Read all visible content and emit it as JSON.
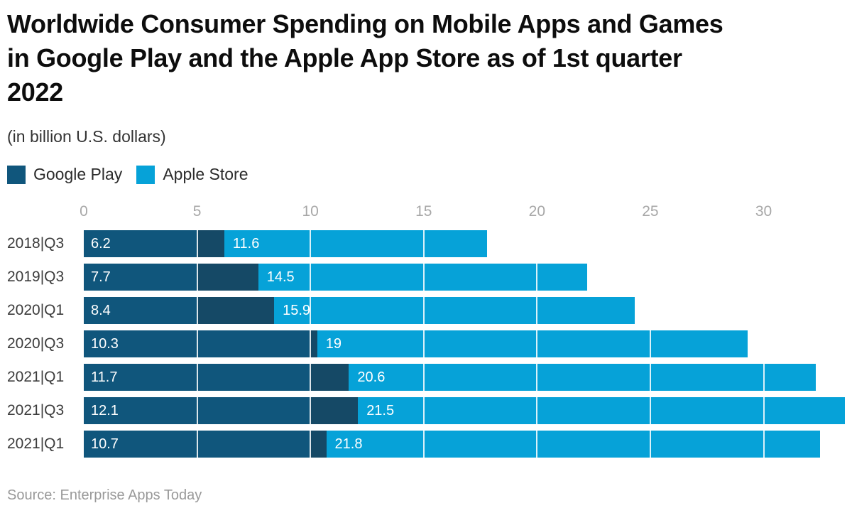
{
  "title_lines": [
    "Worldwide Consumer Spending on Mobile Apps and Games",
    "in Google Play and the Apple App Store as of 1st quarter",
    "2022"
  ],
  "subtitle": "(in billion U.S. dollars)",
  "legend": {
    "items": [
      {
        "label": "Google Play",
        "color": "#10567C"
      },
      {
        "label": "Apple Store",
        "color": "#06A2D8"
      }
    ]
  },
  "source": "Source: Enterprise Apps Today",
  "chart_data": {
    "type": "bar",
    "orientation": "horizontal",
    "stacked": true,
    "title": "Worldwide Consumer Spending on Mobile Apps and Games in Google Play and the Apple App Store as of 1st quarter 2022",
    "subtitle": "(in billion U.S. dollars)",
    "xlabel": "",
    "ylabel": "",
    "legend_position": "top-left",
    "grid": true,
    "gridline_color": "rgba(255,255,255,0.85)",
    "categories": [
      "2018|Q3",
      "2019|Q3",
      "2020|Q1",
      "2020|Q3",
      "2021|Q1",
      "2021|Q3",
      "2021|Q1"
    ],
    "series": [
      {
        "name": "Google Play",
        "color": "#10567C",
        "tail_color": "#154966",
        "values": [
          6.2,
          7.7,
          8.4,
          10.3,
          11.7,
          12.1,
          10.7
        ],
        "labels": [
          "6.2",
          "7.7",
          "8.4",
          "10.3",
          "11.7",
          "12.1",
          "10.7"
        ]
      },
      {
        "name": "Apple Store",
        "color": "#06A2D8",
        "values": [
          11.6,
          14.5,
          15.9,
          19,
          20.6,
          21.5,
          21.8
        ],
        "labels": [
          "11.6",
          "14.5",
          "15.9",
          "19",
          "20.6",
          "21.5",
          "21.8"
        ]
      }
    ],
    "axis": {
      "ticks": [
        0,
        5,
        10,
        15,
        20,
        25,
        30
      ],
      "tick_labels": [
        "0",
        "5",
        "10",
        "15",
        "20",
        "25",
        "30"
      ],
      "xlim": [
        0,
        33.9
      ]
    }
  }
}
